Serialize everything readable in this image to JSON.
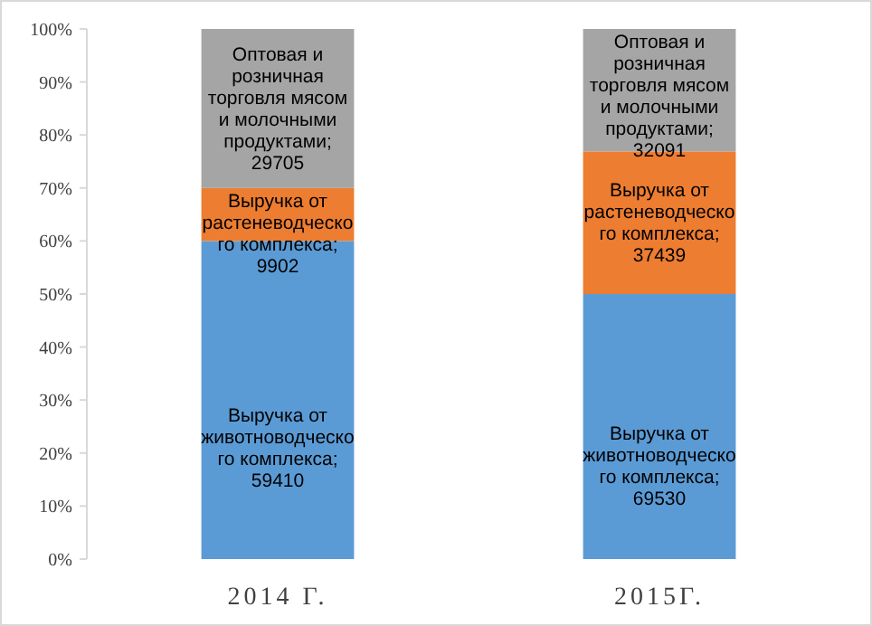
{
  "chart_data": {
    "type": "bar",
    "stacked": true,
    "categories": [
      "2014 Г.",
      "2015Г."
    ],
    "series": [
      {
        "color": "#5b9bd5",
        "values": [
          60.0,
          50.0
        ]
      },
      {
        "color": "#ed7d31",
        "values": [
          10.0,
          26.9
        ]
      },
      {
        "color": "#a5a5a5",
        "values": [
          30.0,
          23.1
        ]
      }
    ],
    "annotations": [
      "Выручка от животноводческо го комплекса; 59410",
      "Выручка от растеневодческо го комплекса; 9902",
      "Оптовая и розничная торговля мясом и молочными продуктами; 29705",
      "Выручка от животноводческо го комплекса; 69530",
      "Выручка от растеневодческо го комплекса; 37439",
      "Оптовая и розничная торговля мясом и молочными продуктами; 32091"
    ],
    "ylim": [
      0,
      100
    ],
    "yticks": [
      {
        "value": 0,
        "label": "0%"
      },
      {
        "value": 10,
        "label": "10%"
      },
      {
        "value": 20,
        "label": "20%"
      },
      {
        "value": 30,
        "label": "30%"
      },
      {
        "value": 40,
        "label": "40%"
      },
      {
        "value": 50,
        "label": "50%"
      },
      {
        "value": 60,
        "label": "60%"
      },
      {
        "value": 70,
        "label": "70%"
      },
      {
        "value": 80,
        "label": "80%"
      },
      {
        "value": 90,
        "label": "90%"
      },
      {
        "value": 100,
        "label": "100%"
      }
    ],
    "grid": false
  }
}
